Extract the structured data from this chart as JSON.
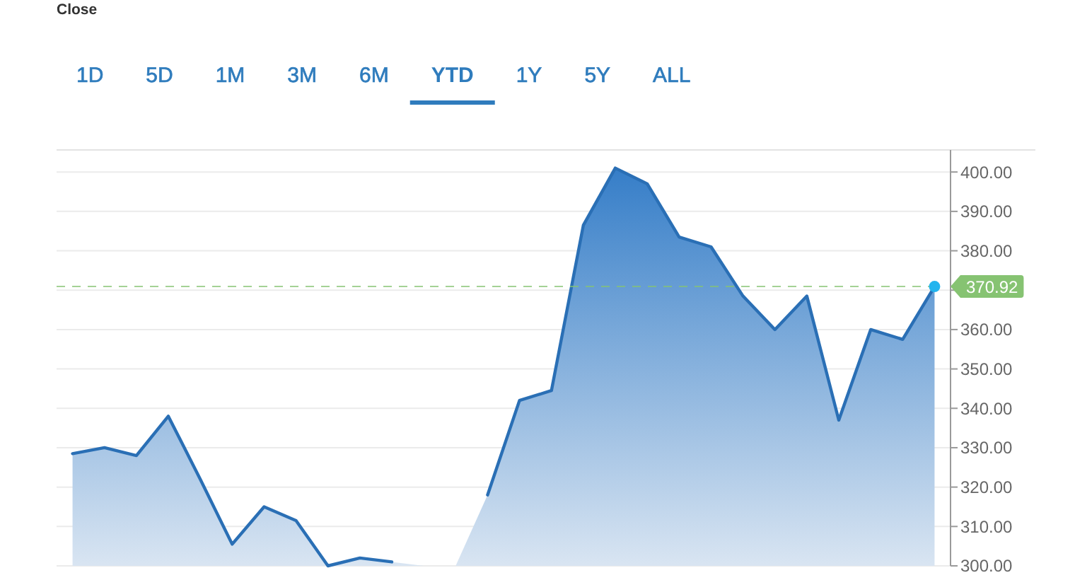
{
  "chart_data": {
    "type": "area",
    "title": "Close",
    "annotations": [
      "1D",
      "5D",
      "1M",
      "3M",
      "6M",
      "YTD",
      "1Y",
      "5Y",
      "ALL"
    ],
    "categories": [
      null,
      null,
      null,
      null,
      null,
      null,
      null,
      null,
      null,
      null,
      null,
      null,
      null,
      null,
      null,
      null,
      null,
      null,
      null,
      null,
      null,
      null,
      null,
      null,
      null,
      null,
      null,
      null
    ],
    "ylim": [
      300,
      405.6
    ],
    "yticks": [
      {
        "value": 300,
        "label": "300.00"
      },
      {
        "value": 310,
        "label": "310.00"
      },
      {
        "value": 320,
        "label": "320.00"
      },
      {
        "value": 330,
        "label": "330.00"
      },
      {
        "value": 340,
        "label": "340.00"
      },
      {
        "value": 350,
        "label": "350.00"
      },
      {
        "value": 360,
        "label": "360.00"
      },
      {
        "value": 370,
        "label": null
      },
      {
        "value": 380,
        "label": "380.00"
      },
      {
        "value": 390,
        "label": "390.00"
      },
      {
        "value": 400,
        "label": "400.00"
      }
    ],
    "tick_labels": "y",
    "grid": "y",
    "series": [
      {
        "color": "#2a6fb5",
        "values": [
          328.5,
          330,
          328,
          338,
          322,
          305.5,
          315,
          311.5,
          300,
          302,
          301,
          null,
          null,
          318,
          342,
          344.5,
          386.5,
          401,
          397,
          383.5,
          381,
          368.5,
          360,
          368.5,
          337,
          360,
          357.5,
          370.92
        ]
      }
    ],
    "ref_lines": [
      {
        "axis": "y",
        "value": 370.92,
        "label": "370.92",
        "color": "#86c372",
        "line_style": "dashed"
      }
    ]
  }
}
